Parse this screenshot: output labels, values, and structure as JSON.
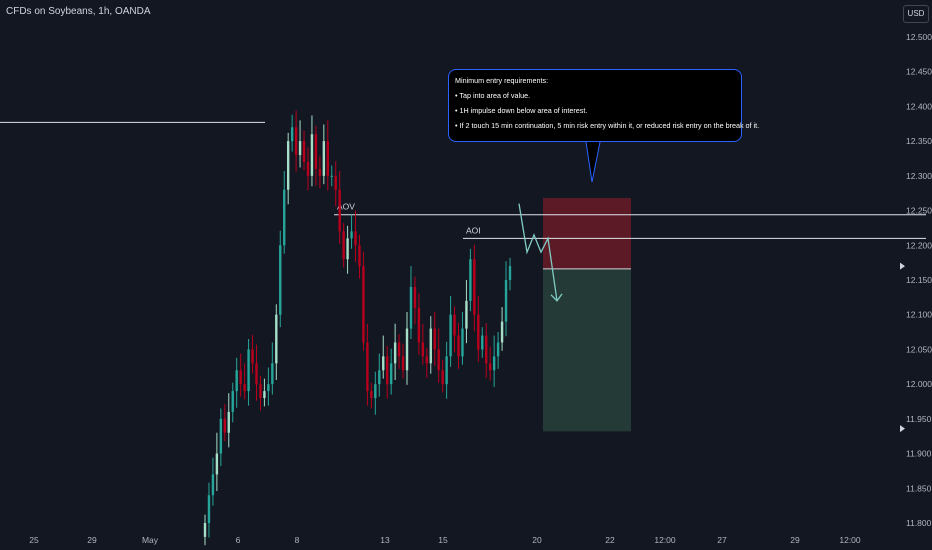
{
  "header": {
    "title": "CFDs on Soybeans, 1h, OANDA",
    "currency": "USD"
  },
  "annotation": {
    "lines": [
      "Minimum entry requirements:",
      "• Tap into area of value.",
      "• 1H impulse down below area of interest.",
      "• If 2 touch 15 min continuation, 5 min risk entry within it, or reduced risk entry on the break of it."
    ]
  },
  "colors": {
    "up": "#26a69a",
    "up_light": "#a5dfc8",
    "down": "#b8001d",
    "stop_zone": "#5c1a26",
    "target_zone": "#243a37",
    "arrow": "#80cbc4",
    "callout_border": "#2962ff"
  },
  "chart_data": {
    "type": "line",
    "title": "CFDs on Soybeans, 1h, OANDA",
    "ylim": [
      11.785,
      12.51
    ],
    "y_ticks": [
      "12.500",
      "12.450",
      "12.400",
      "12.350",
      "12.300",
      "12.250",
      "12.200",
      "12.150",
      "12.100",
      "12.050",
      "12.000",
      "11.950",
      "11.900",
      "11.850",
      "11.800"
    ],
    "x_ticks": [
      "25",
      "29",
      "May",
      "6",
      "8",
      "13",
      "15",
      "20",
      "22",
      "12:00",
      "27",
      "29",
      "12:00"
    ],
    "series": [
      {
        "values": [
          11.8,
          11.84,
          11.87,
          11.9,
          11.95,
          11.93,
          11.96,
          11.99,
          12.02,
          12.0,
          11.99,
          12.05,
          12.03,
          12.0,
          11.98,
          11.99,
          12.0,
          12.03,
          12.1,
          12.2,
          12.28,
          12.35,
          12.37,
          12.33,
          12.35,
          12.32,
          12.3,
          12.36,
          12.31,
          12.3,
          12.35,
          12.3,
          12.3,
          12.28,
          12.22,
          12.18,
          12.21,
          12.22,
          12.2,
          12.17,
          12.06,
          11.99,
          11.98,
          12.0,
          12.02,
          12.04,
          12.0,
          12.03,
          12.06,
          12.04,
          12.02,
          12.08,
          12.14,
          12.11,
          12.06,
          12.04,
          12.03,
          12.08,
          12.05,
          12.02,
          12.0,
          12.04,
          12.1,
          12.07,
          12.04,
          12.08,
          12.12,
          12.18,
          12.1,
          12.05,
          12.07,
          12.03,
          12.02,
          12.04,
          12.06,
          12.09,
          12.15,
          12.17
        ]
      }
    ],
    "levels": [
      {
        "value": 12.377,
        "label": ""
      },
      {
        "value": 12.244,
        "label": "AOV"
      },
      {
        "value": 12.21,
        "label": "AOI"
      }
    ],
    "price_markers": [
      12.17,
      11.936
    ],
    "trade_zone": {
      "entry": 12.166,
      "stop": 12.268,
      "target": 11.932
    },
    "projection": [
      12.26,
      12.19,
      12.215,
      12.19,
      12.21,
      12.12
    ],
    "grid": false
  }
}
